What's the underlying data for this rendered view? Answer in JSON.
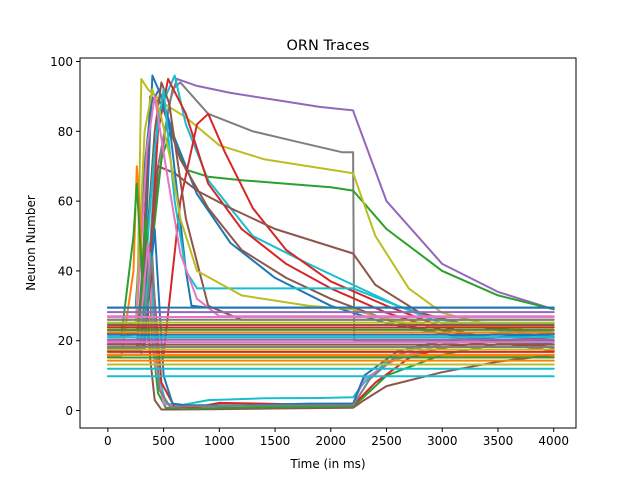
{
  "chart_data": {
    "type": "line",
    "title": "ORN Traces",
    "xlabel": "Time (in ms)",
    "ylabel": "Neuron Number",
    "xlim": [
      -250,
      4200
    ],
    "ylim": [
      -5,
      101
    ],
    "xticks": [
      0,
      500,
      1000,
      1500,
      2000,
      2500,
      3000,
      3500,
      4000
    ],
    "yticks": [
      0,
      20,
      40,
      60,
      80,
      100
    ],
    "grid": false,
    "legend": "none",
    "palette": [
      "#1f77b4",
      "#ff7f0e",
      "#2ca02c",
      "#d62728",
      "#9467bd",
      "#8c564b",
      "#e377c2",
      "#7f7f7f",
      "#bcbd22",
      "#17becf"
    ],
    "series": [
      {
        "color": "#9467bd",
        "x": [
          0,
          120,
          280,
          430,
          550,
          620,
          800,
          1100,
          1500,
          1900,
          2200,
          2210,
          2500,
          3000,
          3500,
          4000
        ],
        "y": [
          23,
          23,
          23,
          60,
          88,
          95,
          93,
          91,
          89,
          87,
          86,
          85,
          60,
          42,
          34,
          29
        ]
      },
      {
        "color": "#7f7f7f",
        "x": [
          0,
          120,
          300,
          450,
          580,
          650,
          900,
          1300,
          1700,
          2100,
          2200,
          2210,
          4000
        ],
        "y": [
          22,
          22,
          22,
          70,
          92,
          94,
          85,
          80,
          77,
          74,
          74,
          20,
          20
        ]
      },
      {
        "color": "#2ca02c",
        "x": [
          0,
          130,
          320,
          480,
          560,
          700,
          900,
          1200,
          1600,
          2000,
          2200,
          2500,
          3000,
          3500,
          4000
        ],
        "y": [
          24,
          24,
          24,
          72,
          80,
          69,
          67,
          66,
          65,
          64,
          63,
          52,
          40,
          33,
          29
        ]
      },
      {
        "color": "#bcbd22",
        "x": [
          0,
          130,
          260,
          300,
          360,
          500,
          700,
          1000,
          1400,
          1800,
          2200,
          2400,
          2700,
          3000,
          3500,
          4000
        ],
        "y": [
          21,
          21,
          22,
          95,
          92,
          88,
          84,
          76,
          72,
          70,
          68,
          50,
          35,
          28,
          24,
          22
        ]
      },
      {
        "color": "#17becf",
        "x": [
          0,
          120,
          330,
          450,
          600,
          700,
          900,
          1300,
          1800,
          2200,
          2600,
          3000,
          3500,
          4000
        ],
        "y": [
          20,
          20,
          20,
          85,
          96,
          82,
          66,
          50,
          42,
          36,
          30,
          26,
          23,
          21
        ]
      },
      {
        "color": "#1f77b4",
        "x": [
          0,
          120,
          300,
          400,
          480,
          600,
          800,
          1100,
          1500,
          2000,
          2500,
          3000,
          3500,
          4000
        ],
        "y": [
          19,
          19,
          19,
          96,
          90,
          78,
          62,
          48,
          38,
          30,
          25,
          22,
          20,
          19
        ]
      },
      {
        "color": "#d62728",
        "x": [
          0,
          120,
          330,
          450,
          540,
          700,
          900,
          1200,
          1600,
          2000,
          2500,
          3000,
          3500,
          4000
        ],
        "y": [
          18,
          18,
          18,
          80,
          95,
          85,
          65,
          52,
          42,
          35,
          28,
          23,
          20,
          18
        ]
      },
      {
        "color": "#8c564b",
        "x": [
          0,
          120,
          280,
          380,
          480,
          650,
          900,
          1200,
          1600,
          2000,
          2500,
          3000,
          4000
        ],
        "y": [
          17,
          17,
          17,
          90,
          88,
          72,
          58,
          46,
          38,
          32,
          26,
          22,
          17
        ]
      },
      {
        "color": "#d62728",
        "x": [
          0,
          120,
          500,
          650,
          800,
          900,
          1050,
          1300,
          1600,
          2000,
          2500,
          3000,
          3500,
          4000
        ],
        "y": [
          16,
          16,
          16,
          60,
          82,
          85,
          74,
          58,
          46,
          37,
          30,
          24,
          20,
          17
        ]
      },
      {
        "color": "#8c564b",
        "x": [
          0,
          120,
          330,
          450,
          600,
          800,
          1100,
          1500,
          2000,
          2200,
          2400,
          2800,
          3300,
          4000
        ],
        "y": [
          22,
          22,
          22,
          70,
          68,
          63,
          58,
          52,
          47,
          45,
          36,
          28,
          24,
          22
        ]
      },
      {
        "color": "#1f77b4",
        "x": [
          0,
          120,
          250,
          330,
          390,
          460,
          560,
          700,
          750,
          900,
          1500,
          2200,
          3000,
          4000
        ],
        "y": [
          29.5,
          29.5,
          29.5,
          70,
          88,
          92,
          80,
          40,
          30,
          29.5,
          29.5,
          29.5,
          29.5,
          29.5
        ]
      },
      {
        "color": "#8c564b",
        "x": [
          0,
          120,
          300,
          420,
          480,
          550,
          700,
          900,
          1200,
          1600,
          2200,
          2600,
          3000,
          3500,
          4000
        ],
        "y": [
          26,
          26,
          26,
          80,
          94,
          88,
          55,
          30,
          26,
          26,
          26,
          26,
          26,
          26,
          26
        ]
      },
      {
        "color": "#17becf",
        "x": [
          0,
          120,
          300,
          420,
          500,
          600,
          700,
          800,
          1200,
          1800,
          2200,
          3000,
          4000
        ],
        "y": [
          25,
          25,
          25,
          75,
          92,
          60,
          40,
          35,
          35,
          35,
          35,
          25,
          25
        ]
      },
      {
        "color": "#bcbd22",
        "x": [
          0,
          120,
          250,
          330,
          400,
          480,
          560,
          650,
          800,
          1200,
          1800,
          2200,
          2400,
          2700,
          3000,
          3500,
          4000
        ],
        "y": [
          24,
          24,
          24,
          80,
          92,
          84,
          72,
          55,
          40,
          33,
          30,
          29,
          27,
          25,
          24,
          24,
          24
        ]
      },
      {
        "color": "#e377c2",
        "x": [
          0,
          120,
          260,
          350,
          420,
          520,
          650,
          800,
          1000,
          2000,
          4000
        ],
        "y": [
          27,
          27,
          27,
          75,
          90,
          70,
          45,
          32,
          27,
          27,
          27
        ]
      },
      {
        "color": "#ff7f0e",
        "x": [
          0,
          120,
          230,
          260,
          290,
          320,
          360,
          420,
          600,
          1000,
          2000,
          4000
        ],
        "y": [
          15.5,
          15.5,
          40,
          70,
          55,
          30,
          20,
          16,
          15.5,
          15.5,
          15.5,
          15.5
        ]
      },
      {
        "color": "#2ca02c",
        "x": [
          0,
          120,
          230,
          260,
          290,
          330,
          370,
          420,
          500,
          900,
          2000,
          4000
        ],
        "y": [
          21,
          21,
          50,
          65,
          48,
          25,
          20,
          21,
          21,
          21,
          21,
          21
        ]
      },
      {
        "color": "#8c564b",
        "x": [
          0,
          120,
          260,
          330,
          380,
          420,
          480,
          600,
          900,
          1500,
          2200,
          2300,
          2500,
          3000,
          3500,
          4000
        ],
        "y": [
          18,
          18,
          18,
          50,
          15,
          3,
          0.3,
          0.3,
          0.4,
          0.6,
          0.8,
          3,
          7,
          11,
          14,
          16
        ]
      },
      {
        "color": "#2ca02c",
        "x": [
          0,
          120,
          270,
          340,
          400,
          450,
          520,
          700,
          1100,
          1600,
          2200,
          2300,
          2500,
          3000,
          3500,
          4000
        ],
        "y": [
          20,
          20,
          20,
          55,
          20,
          5,
          0.8,
          0.6,
          0.8,
          1.0,
          1.2,
          4,
          10,
          16,
          19,
          20
        ]
      },
      {
        "color": "#17becf",
        "x": [
          0,
          120,
          300,
          380,
          440,
          520,
          650,
          900,
          1400,
          1900,
          2200,
          2300,
          2500,
          3000,
          3500,
          4000
        ],
        "y": [
          16,
          16,
          16,
          45,
          12,
          2,
          1.5,
          3,
          3.5,
          3.6,
          3.8,
          8,
          14,
          18,
          20,
          21
        ]
      },
      {
        "color": "#e377c2",
        "x": [
          0,
          120,
          280,
          360,
          420,
          500,
          650,
          900,
          1300,
          1800,
          2200,
          2300,
          2600,
          3000,
          3500,
          4000
        ],
        "y": [
          20,
          20,
          20,
          48,
          14,
          2,
          0.9,
          1.2,
          1.5,
          1.8,
          2.0,
          9,
          15,
          19,
          21,
          22
        ]
      },
      {
        "color": "#d62728",
        "x": [
          0,
          120,
          300,
          400,
          480,
          600,
          800,
          1000,
          1400,
          1800,
          2200,
          2400,
          2700,
          3000,
          3500,
          4000
        ],
        "y": [
          19,
          19,
          19,
          40,
          8,
          1,
          1,
          2.2,
          2.0,
          1.7,
          1.5,
          8,
          15,
          18,
          20,
          21
        ]
      },
      {
        "color": "#1f77b4",
        "x": [
          0,
          120,
          320,
          420,
          500,
          580,
          700,
          1200,
          1800,
          2200,
          2300,
          2600,
          3000,
          3500,
          4000
        ],
        "y": [
          18,
          18,
          18,
          52,
          10,
          2,
          1.5,
          1.5,
          2.0,
          2.0,
          10,
          17,
          20,
          21,
          22
        ]
      },
      {
        "color": "#7f7f7f",
        "x": [
          0,
          120,
          300,
          400,
          460,
          560,
          700,
          1200,
          2200,
          2350,
          2600,
          3000,
          3500,
          4000
        ],
        "y": [
          17,
          17,
          17,
          44,
          6,
          1,
          1.2,
          1.4,
          1.5,
          9,
          16,
          20,
          22,
          23
        ]
      },
      {
        "color": "#1f77b4",
        "x": [
          0,
          4000
        ],
        "y": [
          29.5,
          29.5
        ]
      },
      {
        "color": "#9467bd",
        "x": [
          0,
          4000
        ],
        "y": [
          28.2,
          28.2
        ]
      },
      {
        "color": "#e377c2",
        "x": [
          0,
          4000
        ],
        "y": [
          26.8,
          26.8
        ]
      },
      {
        "color": "#7f7f7f",
        "x": [
          0,
          4000
        ],
        "y": [
          26.0,
          26.0
        ]
      },
      {
        "color": "#bcbd22",
        "x": [
          0,
          4000
        ],
        "y": [
          25.2,
          25.2
        ]
      },
      {
        "color": "#8c564b",
        "x": [
          0,
          4000
        ],
        "y": [
          24.5,
          24.5
        ]
      },
      {
        "color": "#d62728",
        "x": [
          0,
          4000
        ],
        "y": [
          23.8,
          23.8
        ]
      },
      {
        "color": "#2ca02c",
        "x": [
          0,
          4000
        ],
        "y": [
          23.1,
          23.1
        ]
      },
      {
        "color": "#ff7f0e",
        "x": [
          0,
          4000
        ],
        "y": [
          22.4,
          22.4
        ]
      },
      {
        "color": "#1f77b4",
        "x": [
          0,
          4000
        ],
        "y": [
          21.7,
          21.7
        ]
      },
      {
        "color": "#17becf",
        "x": [
          0,
          4000
        ],
        "y": [
          21.0,
          21.0
        ]
      },
      {
        "color": "#9467bd",
        "x": [
          0,
          4000
        ],
        "y": [
          20.3,
          20.3
        ]
      },
      {
        "color": "#e377c2",
        "x": [
          0,
          4000
        ],
        "y": [
          19.6,
          19.6
        ]
      },
      {
        "color": "#8c564b",
        "x": [
          0,
          4000
        ],
        "y": [
          18.9,
          18.9
        ]
      },
      {
        "color": "#7f7f7f",
        "x": [
          0,
          4000
        ],
        "y": [
          18.2,
          18.2
        ]
      },
      {
        "color": "#bcbd22",
        "x": [
          0,
          4000
        ],
        "y": [
          17.5,
          17.5
        ]
      },
      {
        "color": "#d62728",
        "x": [
          0,
          4000
        ],
        "y": [
          16.8,
          16.8
        ]
      },
      {
        "color": "#ff7f0e",
        "x": [
          0,
          4000
        ],
        "y": [
          16.0,
          16.0
        ]
      },
      {
        "color": "#2ca02c",
        "x": [
          0,
          4000
        ],
        "y": [
          15.2,
          15.2
        ]
      },
      {
        "color": "#ff7f0e",
        "x": [
          0,
          4000
        ],
        "y": [
          14.3,
          14.3
        ]
      },
      {
        "color": "#bcbd22",
        "x": [
          0,
          4000
        ],
        "y": [
          13.2,
          13.2
        ]
      },
      {
        "color": "#17becf",
        "x": [
          0,
          4000
        ],
        "y": [
          12.0,
          12.0
        ]
      },
      {
        "color": "#17becf",
        "x": [
          0,
          4000
        ],
        "y": [
          9.8,
          9.8
        ]
      }
    ]
  }
}
